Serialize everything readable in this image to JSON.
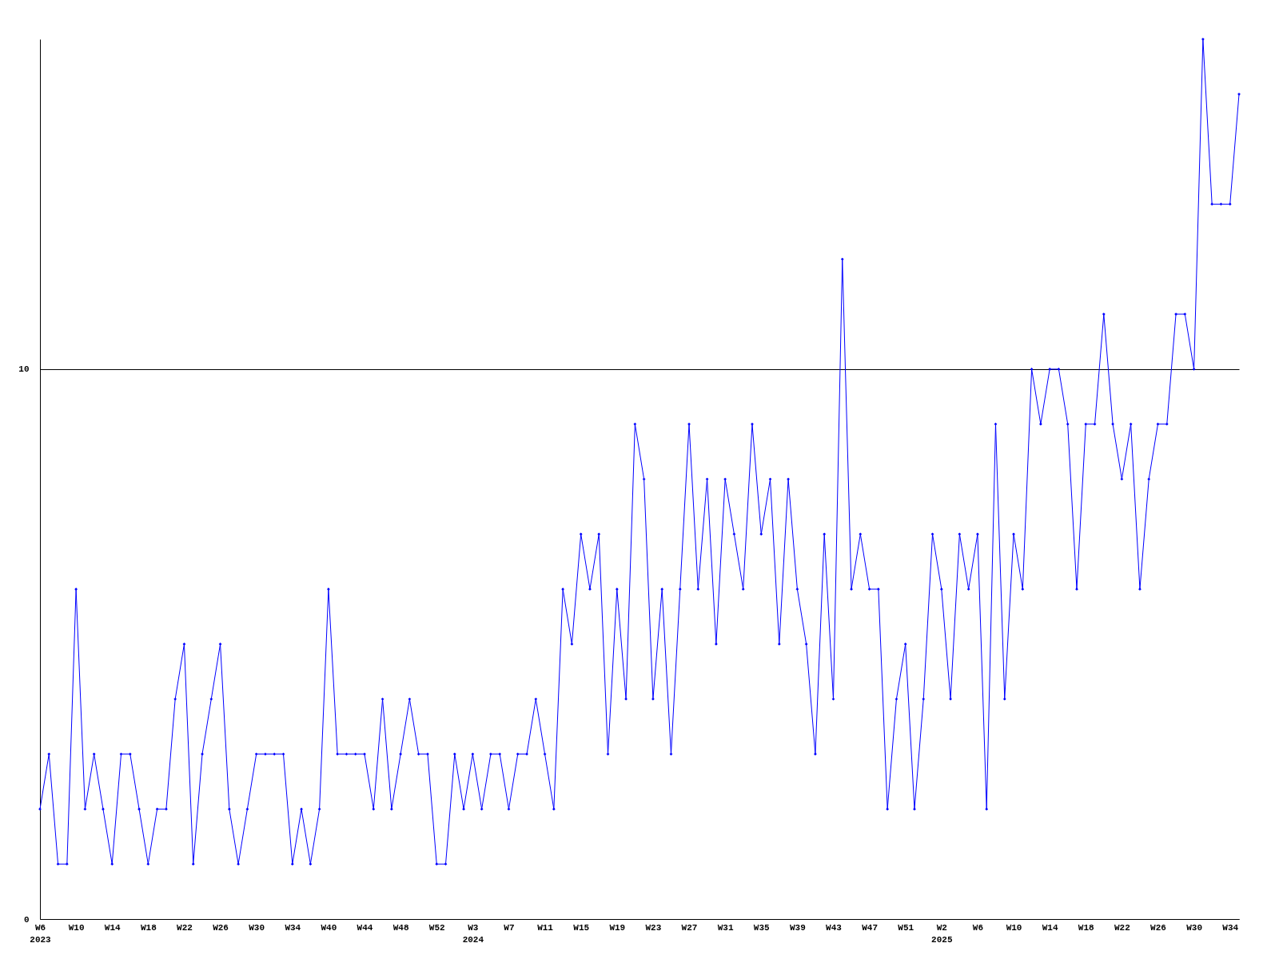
{
  "chart_data": {
    "type": "line",
    "categories": [
      "W6\n2023",
      null,
      null,
      null,
      "W10",
      null,
      null,
      null,
      "W14",
      null,
      null,
      null,
      "W18",
      null,
      null,
      null,
      "W22",
      null,
      null,
      null,
      "W26",
      null,
      null,
      null,
      "W30",
      null,
      null,
      null,
      "W34",
      null,
      null,
      null,
      "W40",
      null,
      null,
      null,
      "W44",
      null,
      null,
      null,
      "W48",
      null,
      null,
      null,
      "W52",
      null,
      null,
      null,
      "W3\n2024",
      null,
      null,
      null,
      "W7",
      null,
      null,
      null,
      "W11",
      null,
      null,
      null,
      "W15",
      null,
      null,
      null,
      "W19",
      null,
      null,
      null,
      "W23",
      null,
      null,
      null,
      "W27",
      null,
      null,
      null,
      "W31",
      null,
      null,
      null,
      "W35",
      null,
      null,
      null,
      "W39",
      null,
      null,
      null,
      "W43",
      null,
      null,
      null,
      "W47",
      null,
      null,
      null,
      "W51",
      null,
      null,
      null,
      "W2\n2025",
      null,
      null,
      null,
      "W6",
      null,
      null,
      null,
      "W10",
      null,
      null,
      null,
      "W14",
      null,
      null,
      null,
      "W18",
      null,
      null,
      null,
      "W22",
      null,
      null,
      null,
      "W26",
      null,
      null,
      null,
      "W30",
      null,
      null,
      null,
      "W34",
      null
    ],
    "series": [
      {
        "color": "#0000ff",
        "values": [
          2,
          3,
          1,
          1,
          6,
          2,
          3,
          2,
          1,
          3,
          3,
          2,
          1,
          2,
          2,
          4,
          5,
          1,
          3,
          4,
          5,
          2,
          1,
          2,
          3,
          3,
          3,
          3,
          1,
          2,
          1,
          2,
          6,
          3,
          3,
          3,
          3,
          2,
          4,
          2,
          3,
          4,
          3,
          3,
          1,
          1,
          3,
          2,
          3,
          2,
          3,
          3,
          2,
          3,
          3,
          4,
          3,
          2,
          6,
          5,
          7,
          6,
          7,
          3,
          6,
          4,
          9,
          8,
          4,
          6,
          3,
          6,
          9,
          6,
          8,
          5,
          8,
          7,
          6,
          9,
          7,
          8,
          5,
          8,
          6,
          5,
          3,
          7,
          4,
          12,
          6,
          7,
          6,
          6,
          2,
          4,
          5,
          2,
          4,
          7,
          6,
          4,
          7,
          6,
          7,
          2,
          9,
          4,
          7,
          6,
          10,
          9,
          10,
          10,
          9,
          6,
          9,
          9,
          11,
          9,
          8,
          9,
          6,
          8,
          9,
          9,
          11,
          11,
          10,
          16,
          13,
          13,
          13,
          15
        ]
      }
    ],
    "ylim": [
      0,
      16
    ],
    "yticks": [
      0,
      10
    ],
    "grid": "y",
    "marker": "diamond",
    "line_style": "solid"
  }
}
